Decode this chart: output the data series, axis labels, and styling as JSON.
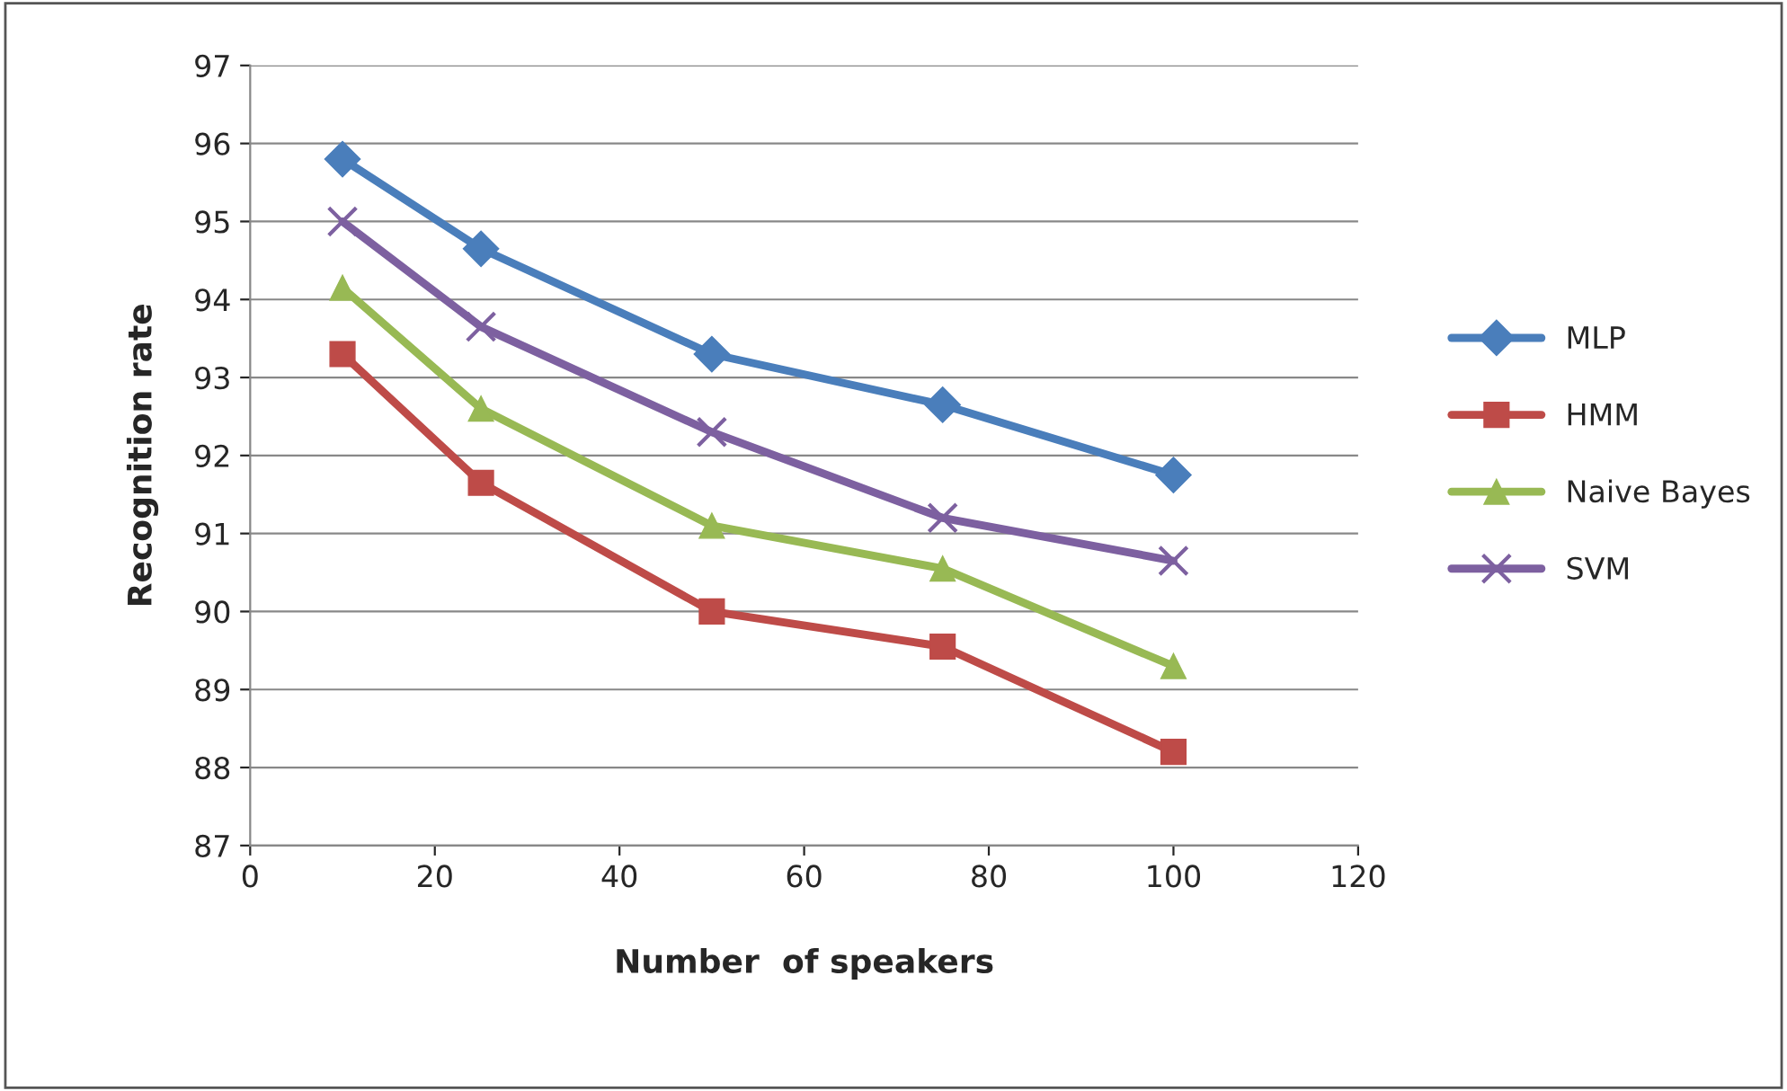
{
  "chart_data": {
    "type": "line",
    "xlabel": "Number  of speakers",
    "ylabel": "Recognition rate",
    "x": [
      10,
      25,
      50,
      75,
      100
    ],
    "series": [
      {
        "name": "MLP",
        "color": "#4a7ebb",
        "marker": "diamond",
        "values": [
          95.8,
          94.65,
          93.3,
          92.65,
          91.75
        ]
      },
      {
        "name": "HMM",
        "color": "#be4b48",
        "marker": "square",
        "values": [
          93.3,
          91.65,
          90.0,
          89.55,
          88.2
        ]
      },
      {
        "name": "Naive Bayes",
        "color": "#98b954",
        "marker": "triangle",
        "values": [
          94.15,
          92.6,
          91.1,
          90.55,
          89.3
        ]
      },
      {
        "name": "SVM",
        "color": "#7d60a0",
        "marker": "cross",
        "values": [
          95.0,
          93.65,
          92.3,
          91.2,
          90.65
        ]
      }
    ],
    "xlim": [
      0,
      120
    ],
    "xticks": [
      0,
      20,
      40,
      60,
      80,
      100,
      120
    ],
    "ylim": [
      87,
      97
    ],
    "yticks": [
      87,
      88,
      89,
      90,
      91,
      92,
      93,
      94,
      95,
      96,
      97
    ],
    "grid": "y",
    "legend": "right",
    "line_style": "solid"
  }
}
